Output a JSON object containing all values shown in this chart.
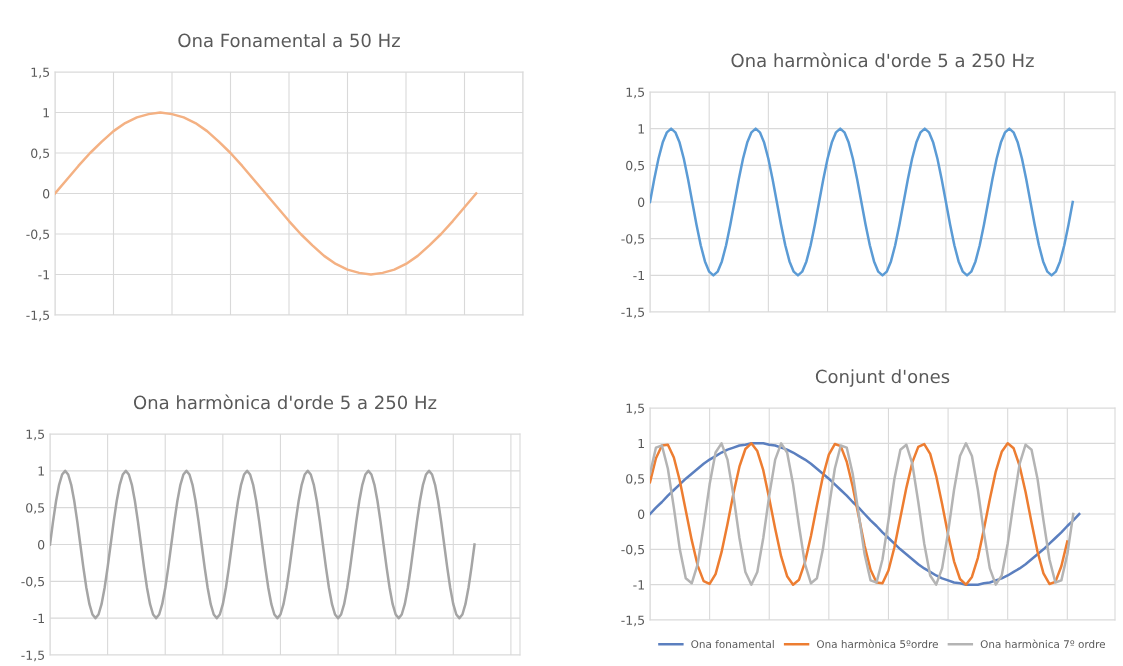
{
  "chart_data": [
    {
      "type": "line",
      "title": "Ona Fonamental a 50 Hz",
      "grid": true,
      "legend": false,
      "categories": [
        null,
        null,
        null,
        null,
        null,
        null,
        null,
        null,
        null,
        null,
        null,
        null,
        null,
        null,
        null,
        null,
        null,
        null,
        null,
        null,
        null,
        null,
        null,
        null,
        null,
        null,
        null,
        null,
        null,
        null,
        null,
        null,
        null,
        null,
        null,
        null,
        null,
        null,
        null,
        null,
        null
      ],
      "ylim": [
        -1.5,
        1.5
      ],
      "yticks": [
        {
          "value": -1.5,
          "label": "-1,5"
        },
        -1,
        {
          "value": -0.5,
          "label": "-0,5"
        },
        0,
        {
          "value": 0.5,
          "label": "0,5"
        },
        1,
        {
          "value": 1.5,
          "label": "1,5"
        }
      ],
      "series": [
        {
          "color": "#f4b183",
          "values": [
            0,
            0.17,
            0.34,
            0.5,
            0.64,
            0.77,
            0.87,
            0.94,
            0.98,
            1,
            0.98,
            0.94,
            0.87,
            0.77,
            0.64,
            0.5,
            0.34,
            0.17,
            0,
            -0.17,
            -0.34,
            -0.5,
            -0.64,
            -0.77,
            -0.87,
            -0.94,
            -0.98,
            -1,
            -0.98,
            -0.94,
            -0.87,
            -0.77,
            -0.64,
            -0.5,
            -0.34,
            -0.17,
            0,
            null,
            null,
            null,
            null
          ]
        }
      ]
    },
    {
      "type": "line",
      "title": "Ona harmònica d'orde 5 a 250 Hz",
      "grid": true,
      "legend": false,
      "categories": [
        null,
        null,
        null,
        null,
        null,
        null,
        null,
        null,
        null,
        null,
        null,
        null,
        null,
        null,
        null,
        null,
        null,
        null,
        null,
        null,
        null,
        null,
        null,
        null,
        null,
        null,
        null,
        null,
        null,
        null,
        null,
        null,
        null,
        null,
        null,
        null,
        null,
        null,
        null,
        null,
        null,
        null,
        null,
        null,
        null,
        null,
        null,
        null,
        null,
        null,
        null,
        null,
        null,
        null,
        null,
        null,
        null,
        null,
        null,
        null,
        null,
        null,
        null,
        null,
        null,
        null,
        null,
        null,
        null,
        null,
        null,
        null,
        null,
        null,
        null,
        null,
        null,
        null,
        null,
        null,
        null,
        null,
        null,
        null,
        null,
        null,
        null,
        null,
        null,
        null,
        null,
        null,
        null,
        null,
        null,
        null,
        null,
        null,
        null,
        null,
        null,
        null,
        null,
        null,
        null,
        null,
        null,
        null,
        null,
        null,
        null
      ],
      "ylim": [
        -1.5,
        1.5
      ],
      "yticks": [
        {
          "value": -1.5,
          "label": "-1,5"
        },
        -1,
        {
          "value": -0.5,
          "label": "-0,5"
        },
        0,
        {
          "value": 0.5,
          "label": "0,5"
        },
        1,
        {
          "value": 1.5,
          "label": "1,5"
        }
      ],
      "series": [
        {
          "color": "#5b9bd5",
          "values": [
            0,
            0.31,
            0.59,
            0.81,
            0.95,
            1,
            0.95,
            0.81,
            0.59,
            0.31,
            0,
            -0.31,
            -0.59,
            -0.81,
            -0.95,
            -1,
            -0.95,
            -0.81,
            -0.59,
            -0.31,
            0,
            0.31,
            0.59,
            0.81,
            0.95,
            1,
            0.95,
            0.81,
            0.59,
            0.31,
            0,
            -0.31,
            -0.59,
            -0.81,
            -0.95,
            -1,
            -0.95,
            -0.81,
            -0.59,
            -0.31,
            0,
            0.31,
            0.59,
            0.81,
            0.95,
            1,
            0.95,
            0.81,
            0.59,
            0.31,
            0,
            -0.31,
            -0.59,
            -0.81,
            -0.95,
            -1,
            -0.95,
            -0.81,
            -0.59,
            -0.31,
            0,
            0.31,
            0.59,
            0.81,
            0.95,
            1,
            0.95,
            0.81,
            0.59,
            0.31,
            0,
            -0.31,
            -0.59,
            -0.81,
            -0.95,
            -1,
            -0.95,
            -0.81,
            -0.59,
            -0.31,
            0,
            0.31,
            0.59,
            0.81,
            0.95,
            1,
            0.95,
            0.81,
            0.59,
            0.31,
            0,
            -0.31,
            -0.59,
            -0.81,
            -0.95,
            -1,
            -0.95,
            -0.81,
            -0.59,
            -0.31,
            0,
            null,
            null,
            null,
            null,
            null,
            null,
            null,
            null,
            null,
            null
          ]
        }
      ]
    },
    {
      "type": "line",
      "title": "Ona harmònica d'orde 5 a 250 Hz",
      "grid": true,
      "legend": false,
      "categories": [
        null,
        null,
        null,
        null,
        null,
        null,
        null,
        null,
        null,
        null,
        null,
        null,
        null,
        null,
        null,
        null,
        null,
        null,
        null,
        null,
        null,
        null,
        null,
        null,
        null,
        null,
        null,
        null,
        null,
        null,
        null,
        null,
        null,
        null,
        null,
        null,
        null,
        null,
        null,
        null,
        null,
        null,
        null,
        null,
        null,
        null,
        null,
        null,
        null,
        null,
        null,
        null,
        null,
        null,
        null,
        null,
        null,
        null,
        null,
        null,
        null,
        null,
        null,
        null,
        null,
        null,
        null,
        null,
        null,
        null,
        null,
        null,
        null,
        null,
        null,
        null,
        null,
        null,
        null,
        null,
        null,
        null,
        null,
        null,
        null,
        null,
        null,
        null,
        null,
        null,
        null,
        null,
        null,
        null,
        null,
        null,
        null,
        null,
        null,
        null,
        null,
        null,
        null,
        null,
        null,
        null,
        null,
        null,
        null,
        null,
        null,
        null,
        null,
        null,
        null,
        null,
        null,
        null,
        null,
        null,
        null,
        null,
        null,
        null,
        null,
        null,
        null,
        null,
        null,
        null,
        null,
        null,
        null,
        null,
        null,
        null,
        null,
        null,
        null,
        null,
        null,
        null,
        null,
        null,
        null,
        null,
        null,
        null,
        null,
        null,
        null,
        null,
        null,
        null,
        null,
        null
      ],
      "ylim": [
        -1.5,
        1.5
      ],
      "yticks": [
        {
          "value": -1.5,
          "label": "-1,5"
        },
        -1,
        {
          "value": -0.5,
          "label": "-0,5"
        },
        0,
        {
          "value": 0.5,
          "label": "0,5"
        },
        1,
        {
          "value": 1.5,
          "label": "1,5"
        }
      ],
      "series": [
        {
          "color": "#a5a5a5",
          "values": [
            0,
            0.31,
            0.59,
            0.81,
            0.95,
            1,
            0.95,
            0.81,
            0.59,
            0.31,
            0,
            -0.31,
            -0.59,
            -0.81,
            -0.95,
            -1,
            -0.95,
            -0.81,
            -0.59,
            -0.31,
            0,
            0.31,
            0.59,
            0.81,
            0.95,
            1,
            0.95,
            0.81,
            0.59,
            0.31,
            0,
            -0.31,
            -0.59,
            -0.81,
            -0.95,
            -1,
            -0.95,
            -0.81,
            -0.59,
            -0.31,
            0,
            0.31,
            0.59,
            0.81,
            0.95,
            1,
            0.95,
            0.81,
            0.59,
            0.31,
            0,
            -0.31,
            -0.59,
            -0.81,
            -0.95,
            -1,
            -0.95,
            -0.81,
            -0.59,
            -0.31,
            0,
            0.31,
            0.59,
            0.81,
            0.95,
            1,
            0.95,
            0.81,
            0.59,
            0.31,
            0,
            -0.31,
            -0.59,
            -0.81,
            -0.95,
            -1,
            -0.95,
            -0.81,
            -0.59,
            -0.31,
            0,
            0.31,
            0.59,
            0.81,
            0.95,
            1,
            0.95,
            0.81,
            0.59,
            0.31,
            0,
            -0.31,
            -0.59,
            -0.81,
            -0.95,
            -1,
            -0.95,
            -0.81,
            -0.59,
            -0.31,
            0,
            0.31,
            0.59,
            0.81,
            0.95,
            1,
            0.95,
            0.81,
            0.59,
            0.31,
            0,
            -0.31,
            -0.59,
            -0.81,
            -0.95,
            -1,
            -0.95,
            -0.81,
            -0.59,
            -0.31,
            0,
            0.31,
            0.59,
            0.81,
            0.95,
            1,
            0.95,
            0.81,
            0.59,
            0.31,
            0,
            -0.31,
            -0.59,
            -0.81,
            -0.95,
            -1,
            -0.95,
            -0.81,
            -0.59,
            -0.31,
            0,
            null,
            null,
            null,
            null,
            null,
            null,
            null,
            null,
            null,
            null,
            null,
            null,
            null,
            null,
            null
          ]
        }
      ]
    },
    {
      "type": "line",
      "title": "Conjunt d'ones",
      "grid": true,
      "legend": "bottom",
      "categories": [
        null,
        null,
        null,
        null,
        null,
        null,
        null,
        null,
        null,
        null,
        null,
        null,
        null,
        null,
        null,
        null,
        null,
        null,
        null,
        null,
        null,
        null,
        null,
        null,
        null,
        null,
        null,
        null,
        null,
        null,
        null,
        null,
        null,
        null,
        null,
        null,
        null,
        null,
        null,
        null,
        null,
        null,
        null,
        null,
        null,
        null,
        null,
        null,
        null,
        null,
        null,
        null,
        null,
        null,
        null,
        null,
        null,
        null,
        null,
        null,
        null,
        null,
        null,
        null,
        null,
        null,
        null,
        null,
        null,
        null,
        null,
        null,
        null,
        null,
        null,
        null,
        null,
        null,
        null
      ],
      "ylim": [
        -1.5,
        1.5
      ],
      "yticks": [
        {
          "value": -1.5,
          "label": "-1,5"
        },
        -1,
        {
          "value": -0.5,
          "label": "-0,5"
        },
        0,
        {
          "value": 0.5,
          "label": "0,5"
        },
        1,
        {
          "value": 1.5,
          "label": "1,5"
        }
      ],
      "series": [
        {
          "name": "Ona fonamental",
          "color": "#5b7fbf",
          "values": [
            0,
            0.09,
            0.17,
            0.26,
            0.34,
            0.42,
            0.5,
            0.57,
            0.64,
            0.71,
            0.77,
            0.82,
            0.87,
            0.91,
            0.94,
            0.97,
            0.98,
            1,
            1,
            1,
            0.98,
            0.97,
            0.94,
            0.91,
            0.87,
            0.82,
            0.77,
            0.71,
            0.64,
            0.57,
            0.5,
            0.42,
            0.34,
            0.26,
            0.17,
            0.09,
            0,
            -0.09,
            -0.17,
            -0.26,
            -0.34,
            -0.42,
            -0.5,
            -0.57,
            -0.64,
            -0.71,
            -0.77,
            -0.82,
            -0.87,
            -0.91,
            -0.94,
            -0.97,
            -0.98,
            -1,
            -1,
            -1,
            -0.98,
            -0.97,
            -0.94,
            -0.91,
            -0.87,
            -0.82,
            -0.77,
            -0.71,
            -0.64,
            -0.57,
            -0.5,
            -0.42,
            -0.34,
            -0.26,
            -0.17,
            -0.09,
            0,
            null,
            null,
            null,
            null,
            null,
            null
          ]
        },
        {
          "name": "Ona harmònica 5ºordre",
          "color": "#ed7d31",
          "values": [
            0.45,
            0.79,
            0.97,
            0.98,
            0.8,
            0.47,
            0.05,
            -0.37,
            -0.73,
            -0.95,
            -0.99,
            -0.85,
            -0.54,
            -0.14,
            0.29,
            0.67,
            0.92,
            1,
            0.89,
            0.62,
            0.22,
            -0.21,
            -0.6,
            -0.88,
            -1,
            -0.93,
            -0.68,
            -0.31,
            0.12,
            0.53,
            0.84,
            0.99,
            0.96,
            0.74,
            0.39,
            -0.03,
            -0.45,
            -0.79,
            -0.97,
            -0.98,
            -0.8,
            -0.47,
            -0.05,
            0.37,
            0.73,
            0.95,
            0.99,
            0.85,
            0.54,
            0.14,
            -0.29,
            -0.67,
            -0.92,
            -1,
            -0.89,
            -0.62,
            -0.22,
            0.21,
            0.6,
            0.88,
            1,
            0.93,
            0.68,
            0.31,
            -0.12,
            -0.53,
            -0.84,
            -0.99,
            -0.96,
            -0.74,
            -0.39,
            null,
            null,
            null,
            null,
            null,
            null,
            null,
            null
          ]
        },
        {
          "name": "Ona harmònica 7º ordre",
          "color": "#b4b4b4",
          "values": [
            0.57,
            0.94,
            0.97,
            0.64,
            0.09,
            -0.5,
            -0.91,
            -0.98,
            -0.71,
            -0.17,
            0.42,
            0.87,
            1,
            0.77,
            0.26,
            -0.34,
            -0.82,
            -1,
            -0.82,
            -0.34,
            0.26,
            0.77,
            1,
            0.87,
            0.42,
            -0.17,
            -0.71,
            -0.98,
            -0.91,
            -0.5,
            0.09,
            0.64,
            0.97,
            0.94,
            0.57,
            0,
            -0.57,
            -0.94,
            -0.97,
            -0.64,
            -0.09,
            0.5,
            0.91,
            0.98,
            0.71,
            0.17,
            -0.42,
            -0.87,
            -1,
            -0.77,
            -0.26,
            0.34,
            0.82,
            1,
            0.82,
            0.34,
            -0.26,
            -0.77,
            -1,
            -0.87,
            -0.42,
            0.17,
            0.71,
            0.98,
            0.91,
            0.5,
            -0.09,
            -0.64,
            -0.97,
            -0.94,
            -0.57,
            0,
            null,
            null,
            null,
            null,
            null,
            null,
            null
          ]
        }
      ]
    }
  ]
}
